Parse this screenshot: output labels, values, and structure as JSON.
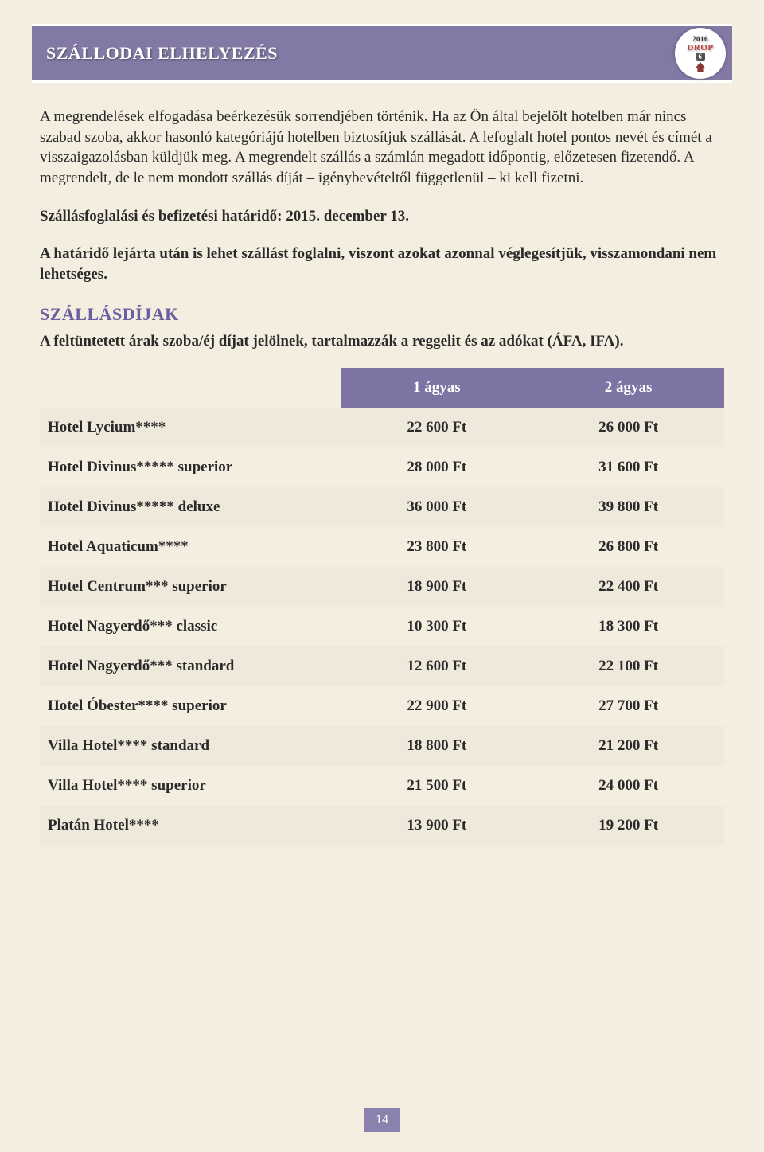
{
  "header": {
    "title": "SZÁLLODAI ELHELYEZÉS",
    "logo_year": "2016",
    "logo_name": "DROP",
    "logo_sub": "6"
  },
  "colors": {
    "header_bg": "#8379a5",
    "page_bg": "#f4eee0",
    "accent_text": "#6a5da0",
    "table_header_bg": "#7e74a3",
    "band_a": "#eee9db",
    "band_b": "#f4eee0",
    "page_number_bg": "#8a81af"
  },
  "paragraphs": {
    "p1": "A megrendelések elfogadása beérkezésük sorrendjében történik. Ha az Ön által bejelölt hotelben már nincs szabad szoba, akkor hasonló kategóriájú hotelben biztosítjuk szállását. A lefoglalt hotel pontos nevét és címét a visszaigazolásban küldjük meg. A megrendelt szállás a számlán megadott időpontig, előzetesen fizetendő. A megrendelt, de le nem mondott szállás díját – igénybevételtől függetlenül – ki kell fizetni.",
    "p2": "Szállásfoglalási és befizetési határidő: 2015. december 13.",
    "p3": "A határidő lejárta után is lehet szállást foglalni, viszont azokat azonnal véglegesítjük, visszamondani nem lehetséges.",
    "subtitle": "SZÁLLÁSDÍJAK",
    "p4": "A feltüntetett árak szoba/éj díjat jelölnek, tartalmazzák a reggelit és az adókat (ÁFA, IFA)."
  },
  "table": {
    "columns": [
      "",
      "1 ágyas",
      "2 ágyas"
    ],
    "rows": [
      {
        "name": "Hotel Lycium****",
        "c1": "22 600 Ft",
        "c2": "26 000 Ft"
      },
      {
        "name": "Hotel Divinus***** superior",
        "c1": "28 000 Ft",
        "c2": "31 600 Ft"
      },
      {
        "name": "Hotel Divinus***** deluxe",
        "c1": "36 000 Ft",
        "c2": "39 800 Ft"
      },
      {
        "name": "Hotel Aquaticum****",
        "c1": "23 800 Ft",
        "c2": "26 800 Ft"
      },
      {
        "name": "Hotel Centrum*** superior",
        "c1": "18 900 Ft",
        "c2": "22 400 Ft"
      },
      {
        "name": "Hotel Nagyerdő*** classic",
        "c1": "10 300 Ft",
        "c2": "18 300 Ft"
      },
      {
        "name": "Hotel Nagyerdő*** standard",
        "c1": "12 600 Ft",
        "c2": "22 100 Ft"
      },
      {
        "name": "Hotel Óbester**** superior",
        "c1": "22 900 Ft",
        "c2": "27 700 Ft"
      },
      {
        "name": "Villa Hotel**** standard",
        "c1": "18 800 Ft",
        "c2": "21 200 Ft"
      },
      {
        "name": "Villa Hotel**** superior",
        "c1": "21 500 Ft",
        "c2": "24 000 Ft"
      },
      {
        "name": "Platán Hotel****",
        "c1": "13 900 Ft",
        "c2": "19 200 Ft"
      }
    ]
  },
  "page_number": "14"
}
